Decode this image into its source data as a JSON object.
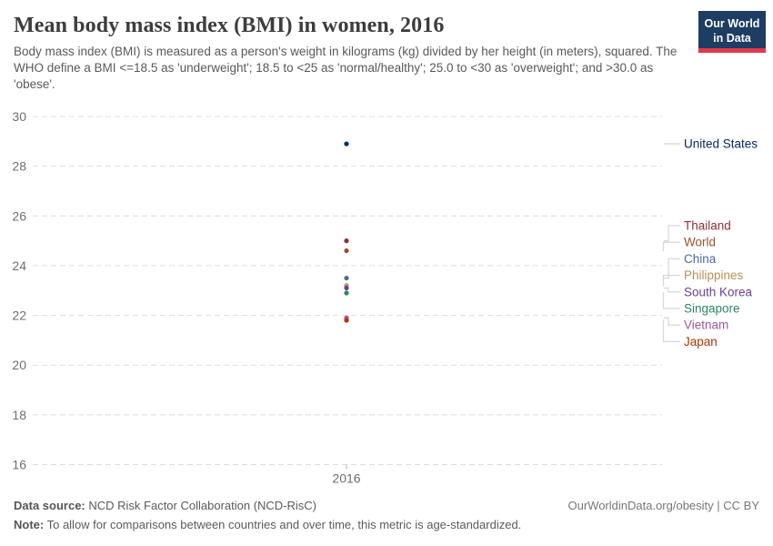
{
  "header": {
    "title": "Mean body mass index (BMI) in women, 2016",
    "subtitle": "Body mass index (BMI) is measured as a person's weight in kilograms (kg) divided by her height (in meters), squared. The WHO define a BMI <=18.5 as 'underweight'; 18.5 to <25 as 'normal/healthy'; 25.0 to <30 as 'overweight'; and >30.0 as 'obese'.",
    "logo": {
      "line1": "Our World",
      "line2": "in Data",
      "bg_color": "#1D3D63",
      "accent_color": "#DE3B4A"
    }
  },
  "chart_data": {
    "type": "scatter",
    "title": "Mean body mass index (BMI) in women, 2016",
    "x_tick_label": "2016",
    "ylim": [
      16,
      30
    ],
    "yticks": [
      30,
      28,
      26,
      24,
      22,
      20,
      18,
      16
    ],
    "grid": "dashed-horizontal",
    "legend_position": "right",
    "series": [
      {
        "name": "United States",
        "value": 28.9,
        "color": "#00295B"
      },
      {
        "name": "Thailand",
        "value": 25.0,
        "color": "#883039"
      },
      {
        "name": "World",
        "value": 24.6,
        "color": "#9A5129"
      },
      {
        "name": "China",
        "value": 23.5,
        "color": "#4C6A9C"
      },
      {
        "name": "Philippines",
        "value": 23.2,
        "color": "#BC8E5A"
      },
      {
        "name": "South Korea",
        "value": 23.1,
        "color": "#6D3E91"
      },
      {
        "name": "Singapore",
        "value": 22.9,
        "color": "#2C8465"
      },
      {
        "name": "Vietnam",
        "value": 21.9,
        "color": "#A2559C"
      },
      {
        "name": "Japan",
        "value": 21.8,
        "color": "#B13507"
      }
    ]
  },
  "footer": {
    "data_source_label": "Data source:",
    "data_source": " NCD Risk Factor Collaboration (NCD-RisC)",
    "credit": "OurWorldinData.org/obesity | CC BY",
    "note_label": "Note:",
    "note": " To allow for comparisons between countries and over time, this metric is age-standardized."
  }
}
